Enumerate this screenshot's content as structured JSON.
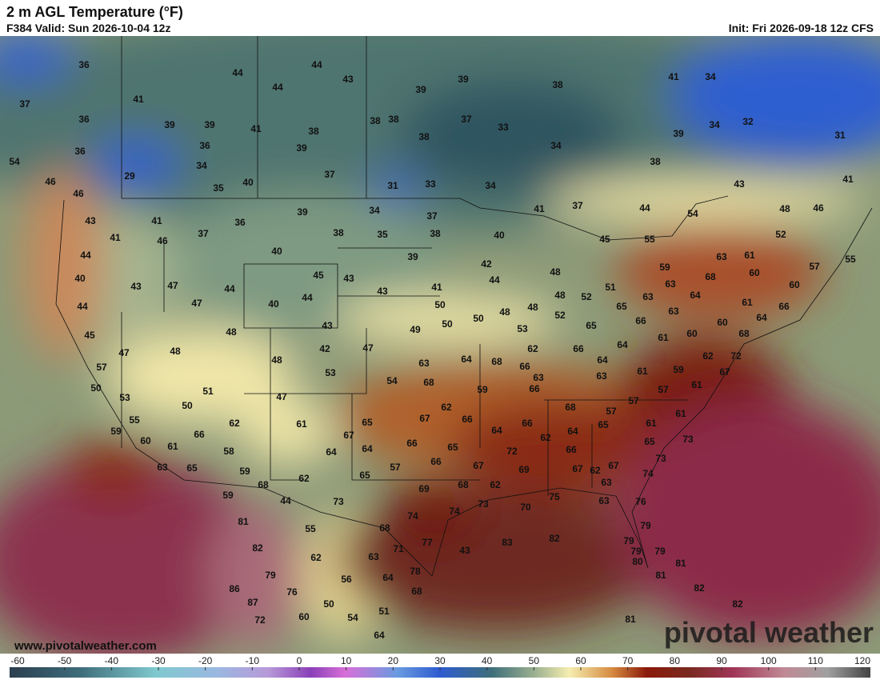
{
  "header": {
    "title": "2 m AGL Temperature (°F)",
    "valid": "F384 Valid: Sun 2026-10-04 12z",
    "init": "Init: Fri 2026-09-18 12z CFS"
  },
  "footer": {
    "website": "www.pivotalweather.com",
    "logo": "pivotal weather"
  },
  "map_labels": [
    36,
    37,
    36,
    41,
    39,
    39,
    36,
    54,
    46,
    46,
    29,
    36,
    34,
    35,
    40,
    44,
    41,
    39,
    38,
    37,
    44,
    43,
    44,
    38,
    38,
    38,
    39,
    39,
    37,
    33,
    38,
    34,
    33,
    31,
    34,
    38,
    39,
    41,
    34,
    34,
    32,
    31,
    41,
    43,
    48,
    46,
    52,
    54,
    44,
    37,
    41,
    45,
    55,
    59,
    63,
    61,
    60,
    68,
    64,
    63,
    63,
    63,
    57,
    60,
    55,
    66,
    64,
    61,
    60,
    68,
    62,
    72,
    67,
    60,
    61,
    66,
    65,
    51,
    52,
    48,
    48,
    52,
    48,
    48,
    50,
    50,
    50,
    41,
    42,
    44,
    40,
    38,
    37,
    39,
    34,
    35,
    38,
    39,
    40,
    36,
    37,
    41,
    46,
    41,
    43,
    44,
    40,
    44,
    43,
    47,
    47,
    44,
    45,
    43,
    43,
    44,
    40,
    43,
    42,
    47,
    49,
    53,
    65,
    66,
    62,
    64,
    64,
    63,
    61,
    59,
    61,
    57,
    57,
    57,
    61,
    61,
    73,
    65,
    73,
    74,
    76,
    79,
    79,
    79,
    79,
    80,
    81,
    81,
    82,
    82,
    81,
    82,
    83,
    43,
    45,
    47,
    57,
    50,
    53,
    55,
    59,
    60,
    61,
    63,
    65,
    66,
    58,
    50,
    51,
    62,
    59,
    68,
    59,
    44,
    48,
    48,
    48,
    47,
    53,
    61,
    64,
    67,
    65,
    64,
    65,
    57,
    54,
    63,
    68,
    67,
    62,
    66,
    66,
    66,
    65,
    69,
    68,
    67,
    62,
    64,
    59,
    64,
    68,
    66,
    63,
    66,
    66,
    62,
    64,
    66,
    67,
    62,
    65,
    67,
    63,
    68,
    69,
    72,
    73,
    74,
    70,
    75,
    63,
    62,
    73,
    81,
    82,
    79,
    86,
    87,
    72,
    76,
    60,
    55,
    62,
    56,
    50,
    54,
    51,
    64,
    63,
    64,
    68,
    71,
    74,
    77,
    78,
    68
  ],
  "colorbar": {
    "ticks": [
      -60,
      -50,
      -40,
      -30,
      -20,
      -10,
      0,
      10,
      20,
      30,
      40,
      50,
      60,
      70,
      80,
      90,
      100,
      110,
      120
    ]
  }
}
